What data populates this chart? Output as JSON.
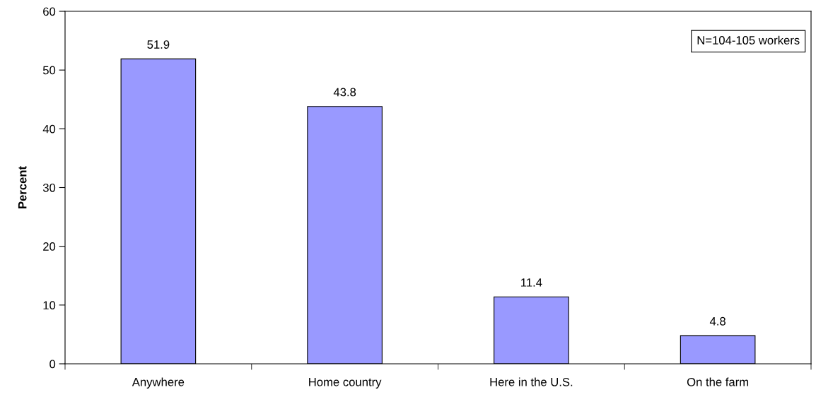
{
  "chart_data": {
    "type": "bar",
    "ylabel": "Percent",
    "categories": [
      "Anywhere",
      "Home country",
      "Here in the U.S.",
      "On the farm"
    ],
    "values": [
      51.9,
      43.8,
      11.4,
      4.8
    ],
    "color": "#9999ff",
    "ylim": [
      0,
      60
    ],
    "yticks": [
      0,
      10,
      20,
      30,
      40,
      50,
      60
    ],
    "grid": false,
    "data_labels": true,
    "annotations": [
      "N=104-105 workers"
    ]
  }
}
